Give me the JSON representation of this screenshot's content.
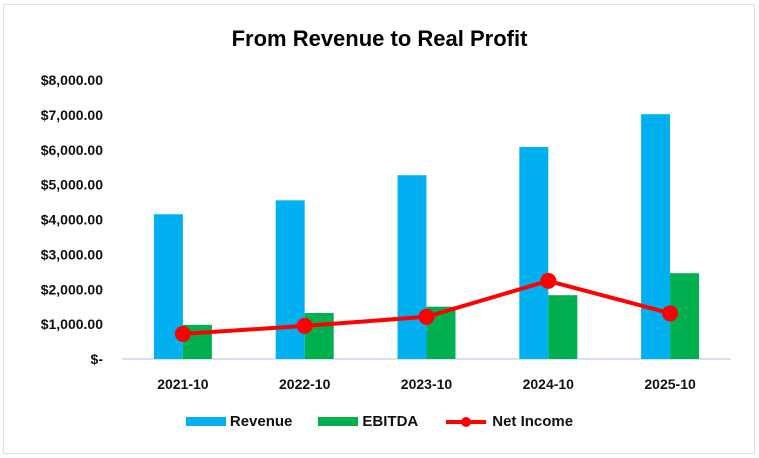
{
  "chart_data": {
    "type": "bar",
    "title": "From Revenue to Real Profit",
    "xlabel": "",
    "ylabel": "",
    "ylim": [
      0,
      8000
    ],
    "yticks": [
      "$-",
      "$1,000.00",
      "$2,000.00",
      "$3,000.00",
      "$4,000.00",
      "$5,000.00",
      "$6,000.00",
      "$7,000.00",
      "$8,000.00"
    ],
    "ytick_values": [
      0,
      1000,
      2000,
      3000,
      4000,
      5000,
      6000,
      7000,
      8000
    ],
    "categories": [
      "2021-10",
      "2022-10",
      "2023-10",
      "2024-10",
      "2025-10"
    ],
    "series": [
      {
        "name": "Revenue",
        "type": "bar",
        "color": "#00b0f0",
        "values": [
          4150,
          4550,
          5270,
          6080,
          7020
        ]
      },
      {
        "name": "EBITDA",
        "type": "bar",
        "color": "#00b050",
        "values": [
          980,
          1320,
          1500,
          1830,
          2460
        ]
      },
      {
        "name": "Net Income",
        "type": "line",
        "color": "#ff0000",
        "values": [
          720,
          950,
          1210,
          2240,
          1310
        ]
      }
    ],
    "grid": false,
    "legend": "bottom"
  }
}
